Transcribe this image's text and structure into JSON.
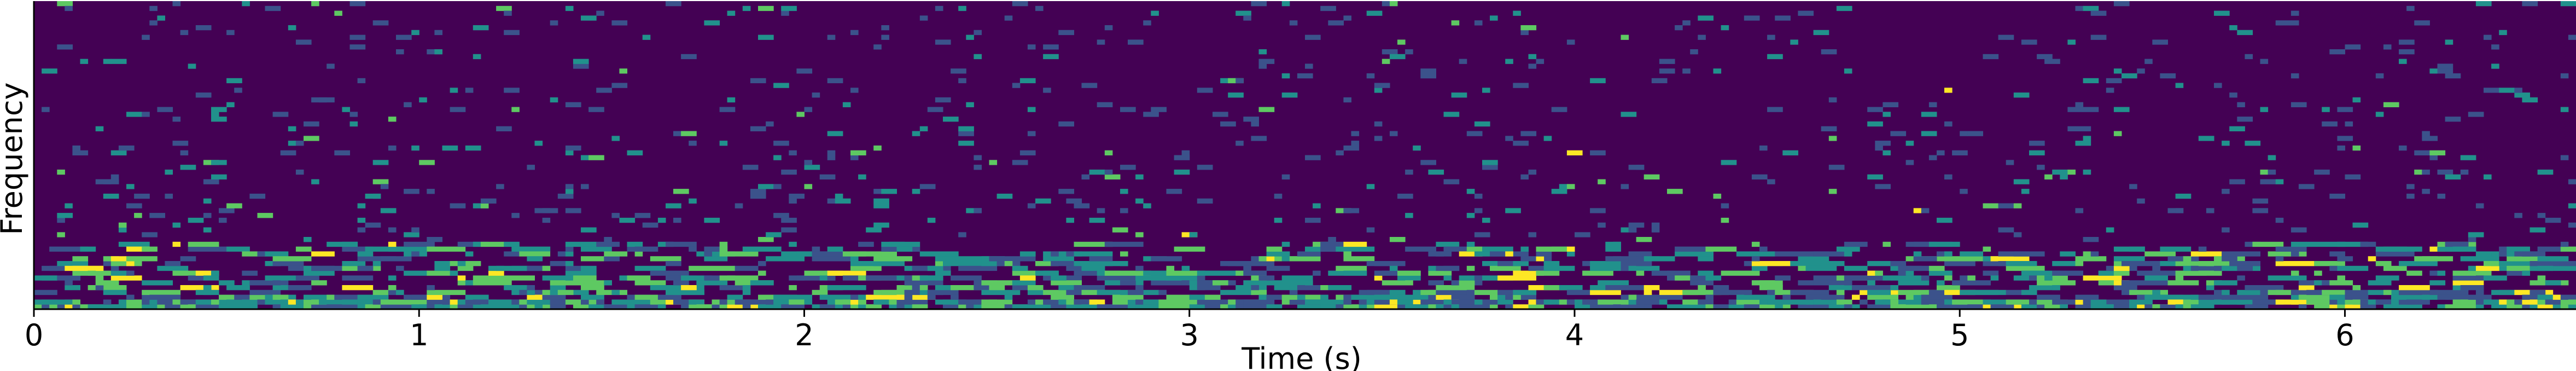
{
  "chart_data": {
    "type": "heatmap",
    "title": "",
    "xlabel": "Time (s)",
    "ylabel": "Frequency",
    "xlim": [
      0,
      6.6
    ],
    "x_ticks": [
      {
        "value": 0,
        "label": "0"
      },
      {
        "value": 1,
        "label": "1"
      },
      {
        "value": 2,
        "label": "2"
      },
      {
        "value": 3,
        "label": "3"
      },
      {
        "value": 4,
        "label": "4"
      },
      {
        "value": 5,
        "label": "5"
      },
      {
        "value": 6,
        "label": "6"
      }
    ],
    "y_ticks": [],
    "colormap": "viridis",
    "colors": {
      "background": "#440154",
      "low": "#3b528b",
      "mid": "#21918c",
      "high": "#5ec962",
      "peak": "#fde725"
    },
    "grid": false,
    "legend": "none",
    "energy_concentration": "low frequencies",
    "time_columns": 330,
    "frequency_bins": 64
  }
}
